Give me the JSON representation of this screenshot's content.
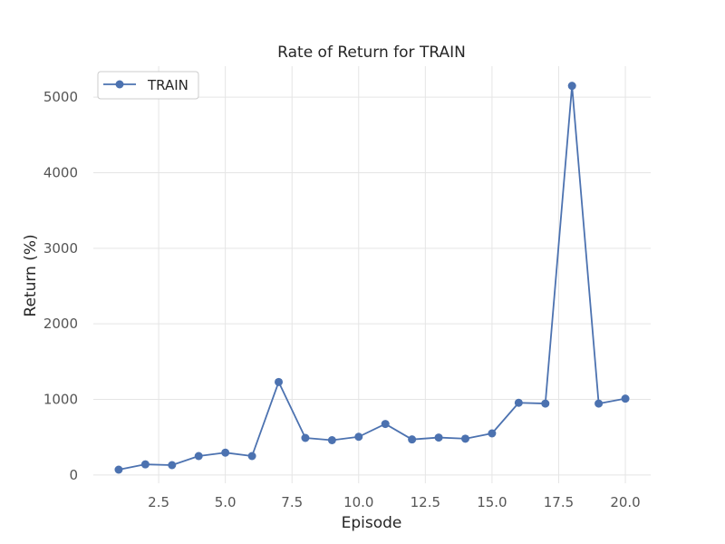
{
  "chart_data": {
    "type": "line",
    "title": "Rate of Return for TRAIN",
    "xlabel": "Episode",
    "ylabel": "Return (%)",
    "xlim": [
      0.05,
      20.95
    ],
    "ylim": [
      -110,
      5410
    ],
    "xticks": [
      2.5,
      5.0,
      7.5,
      10.0,
      12.5,
      15.0,
      17.5,
      20.0
    ],
    "xtick_labels": [
      "2.5",
      "5.0",
      "7.5",
      "10.0",
      "12.5",
      "15.0",
      "17.5",
      "20.0"
    ],
    "yticks": [
      0,
      1000,
      2000,
      3000,
      4000,
      5000
    ],
    "ytick_labels": [
      "0",
      "1000",
      "2000",
      "3000",
      "4000",
      "5000"
    ],
    "grid": true,
    "legend_position": "top-left",
    "series": [
      {
        "name": "TRAIN",
        "color": "#4c72b0",
        "x": [
          1,
          2,
          3,
          4,
          5,
          6,
          7,
          8,
          9,
          10,
          11,
          12,
          13,
          14,
          15,
          16,
          17,
          18,
          19,
          20
        ],
        "y": [
          70,
          140,
          130,
          250,
          295,
          250,
          1230,
          490,
          460,
          505,
          675,
          470,
          495,
          480,
          550,
          955,
          945,
          5150,
          945,
          1010
        ]
      }
    ]
  }
}
